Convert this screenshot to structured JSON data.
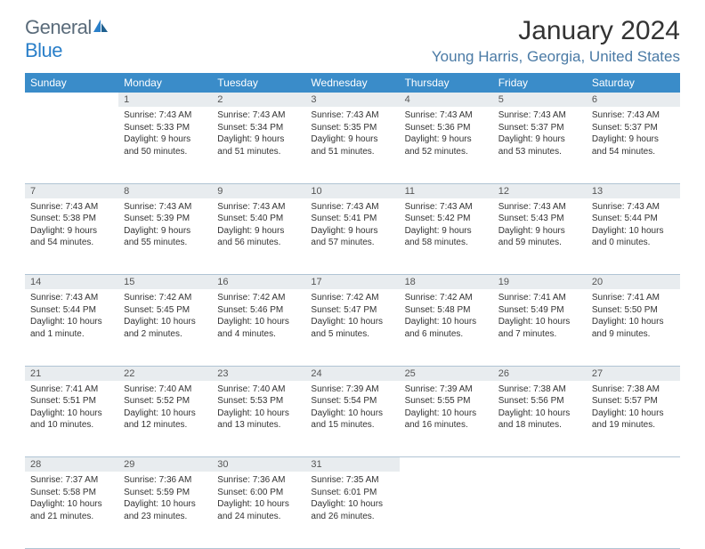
{
  "logo": {
    "word1": "General",
    "word2": "Blue"
  },
  "title": "January 2024",
  "location": "Young Harris, Georgia, United States",
  "colors": {
    "header_bg": "#3a8cc9",
    "header_text": "#ffffff",
    "daynum_bg": "#e8ecef",
    "border": "#b0c4d4",
    "location_text": "#4a7aa5",
    "logo_gray": "#5a6b7a",
    "logo_blue": "#2a7fc9"
  },
  "weekdays": [
    "Sunday",
    "Monday",
    "Tuesday",
    "Wednesday",
    "Thursday",
    "Friday",
    "Saturday"
  ],
  "weeks": [
    [
      null,
      {
        "n": "1",
        "sr": "Sunrise: 7:43 AM",
        "ss": "Sunset: 5:33 PM",
        "dl": "Daylight: 9 hours and 50 minutes."
      },
      {
        "n": "2",
        "sr": "Sunrise: 7:43 AM",
        "ss": "Sunset: 5:34 PM",
        "dl": "Daylight: 9 hours and 51 minutes."
      },
      {
        "n": "3",
        "sr": "Sunrise: 7:43 AM",
        "ss": "Sunset: 5:35 PM",
        "dl": "Daylight: 9 hours and 51 minutes."
      },
      {
        "n": "4",
        "sr": "Sunrise: 7:43 AM",
        "ss": "Sunset: 5:36 PM",
        "dl": "Daylight: 9 hours and 52 minutes."
      },
      {
        "n": "5",
        "sr": "Sunrise: 7:43 AM",
        "ss": "Sunset: 5:37 PM",
        "dl": "Daylight: 9 hours and 53 minutes."
      },
      {
        "n": "6",
        "sr": "Sunrise: 7:43 AM",
        "ss": "Sunset: 5:37 PM",
        "dl": "Daylight: 9 hours and 54 minutes."
      }
    ],
    [
      {
        "n": "7",
        "sr": "Sunrise: 7:43 AM",
        "ss": "Sunset: 5:38 PM",
        "dl": "Daylight: 9 hours and 54 minutes."
      },
      {
        "n": "8",
        "sr": "Sunrise: 7:43 AM",
        "ss": "Sunset: 5:39 PM",
        "dl": "Daylight: 9 hours and 55 minutes."
      },
      {
        "n": "9",
        "sr": "Sunrise: 7:43 AM",
        "ss": "Sunset: 5:40 PM",
        "dl": "Daylight: 9 hours and 56 minutes."
      },
      {
        "n": "10",
        "sr": "Sunrise: 7:43 AM",
        "ss": "Sunset: 5:41 PM",
        "dl": "Daylight: 9 hours and 57 minutes."
      },
      {
        "n": "11",
        "sr": "Sunrise: 7:43 AM",
        "ss": "Sunset: 5:42 PM",
        "dl": "Daylight: 9 hours and 58 minutes."
      },
      {
        "n": "12",
        "sr": "Sunrise: 7:43 AM",
        "ss": "Sunset: 5:43 PM",
        "dl": "Daylight: 9 hours and 59 minutes."
      },
      {
        "n": "13",
        "sr": "Sunrise: 7:43 AM",
        "ss": "Sunset: 5:44 PM",
        "dl": "Daylight: 10 hours and 0 minutes."
      }
    ],
    [
      {
        "n": "14",
        "sr": "Sunrise: 7:43 AM",
        "ss": "Sunset: 5:44 PM",
        "dl": "Daylight: 10 hours and 1 minute."
      },
      {
        "n": "15",
        "sr": "Sunrise: 7:42 AM",
        "ss": "Sunset: 5:45 PM",
        "dl": "Daylight: 10 hours and 2 minutes."
      },
      {
        "n": "16",
        "sr": "Sunrise: 7:42 AM",
        "ss": "Sunset: 5:46 PM",
        "dl": "Daylight: 10 hours and 4 minutes."
      },
      {
        "n": "17",
        "sr": "Sunrise: 7:42 AM",
        "ss": "Sunset: 5:47 PM",
        "dl": "Daylight: 10 hours and 5 minutes."
      },
      {
        "n": "18",
        "sr": "Sunrise: 7:42 AM",
        "ss": "Sunset: 5:48 PM",
        "dl": "Daylight: 10 hours and 6 minutes."
      },
      {
        "n": "19",
        "sr": "Sunrise: 7:41 AM",
        "ss": "Sunset: 5:49 PM",
        "dl": "Daylight: 10 hours and 7 minutes."
      },
      {
        "n": "20",
        "sr": "Sunrise: 7:41 AM",
        "ss": "Sunset: 5:50 PM",
        "dl": "Daylight: 10 hours and 9 minutes."
      }
    ],
    [
      {
        "n": "21",
        "sr": "Sunrise: 7:41 AM",
        "ss": "Sunset: 5:51 PM",
        "dl": "Daylight: 10 hours and 10 minutes."
      },
      {
        "n": "22",
        "sr": "Sunrise: 7:40 AM",
        "ss": "Sunset: 5:52 PM",
        "dl": "Daylight: 10 hours and 12 minutes."
      },
      {
        "n": "23",
        "sr": "Sunrise: 7:40 AM",
        "ss": "Sunset: 5:53 PM",
        "dl": "Daylight: 10 hours and 13 minutes."
      },
      {
        "n": "24",
        "sr": "Sunrise: 7:39 AM",
        "ss": "Sunset: 5:54 PM",
        "dl": "Daylight: 10 hours and 15 minutes."
      },
      {
        "n": "25",
        "sr": "Sunrise: 7:39 AM",
        "ss": "Sunset: 5:55 PM",
        "dl": "Daylight: 10 hours and 16 minutes."
      },
      {
        "n": "26",
        "sr": "Sunrise: 7:38 AM",
        "ss": "Sunset: 5:56 PM",
        "dl": "Daylight: 10 hours and 18 minutes."
      },
      {
        "n": "27",
        "sr": "Sunrise: 7:38 AM",
        "ss": "Sunset: 5:57 PM",
        "dl": "Daylight: 10 hours and 19 minutes."
      }
    ],
    [
      {
        "n": "28",
        "sr": "Sunrise: 7:37 AM",
        "ss": "Sunset: 5:58 PM",
        "dl": "Daylight: 10 hours and 21 minutes."
      },
      {
        "n": "29",
        "sr": "Sunrise: 7:36 AM",
        "ss": "Sunset: 5:59 PM",
        "dl": "Daylight: 10 hours and 23 minutes."
      },
      {
        "n": "30",
        "sr": "Sunrise: 7:36 AM",
        "ss": "Sunset: 6:00 PM",
        "dl": "Daylight: 10 hours and 24 minutes."
      },
      {
        "n": "31",
        "sr": "Sunrise: 7:35 AM",
        "ss": "Sunset: 6:01 PM",
        "dl": "Daylight: 10 hours and 26 minutes."
      },
      null,
      null,
      null
    ]
  ]
}
